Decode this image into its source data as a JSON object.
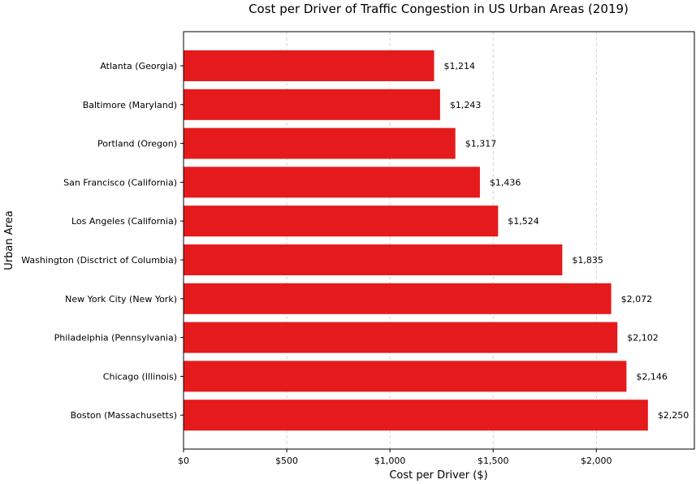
{
  "chart_data": {
    "type": "bar",
    "orientation": "horizontal",
    "title": "Cost per Driver of Traffic Congestion in US Urban Areas (2019)",
    "xlabel": "Cost per Driver ($)",
    "ylabel": "Urban Area",
    "categories": [
      "Atlanta (Georgia)",
      "Baltimore (Maryland)",
      "Portland (Oregon)",
      "San Francisco (California)",
      "Los Angeles (California)",
      "Washington (Disctrict of Columbia)",
      "New York City (New York)",
      "Philadelphia (Pennsylvania)",
      "Chicago (Illinois)",
      "Boston (Massachusetts)"
    ],
    "values": [
      1214,
      1243,
      1317,
      1436,
      1524,
      1835,
      2072,
      2102,
      2146,
      2250
    ],
    "value_labels": [
      "$1,214",
      "$1,243",
      "$1,317",
      "$1,436",
      "$1,524",
      "$1,835",
      "$2,072",
      "$2,102",
      "$2,146",
      "$2,250"
    ],
    "xlim": [
      0,
      2475
    ],
    "xticks": [
      0,
      500,
      1000,
      1500,
      2000
    ],
    "xtick_labels": [
      "$0",
      "$500",
      "$1,000",
      "$1,500",
      "$2,000"
    ],
    "grid": "vertical dashed",
    "bar_color": "#e41a1c"
  }
}
